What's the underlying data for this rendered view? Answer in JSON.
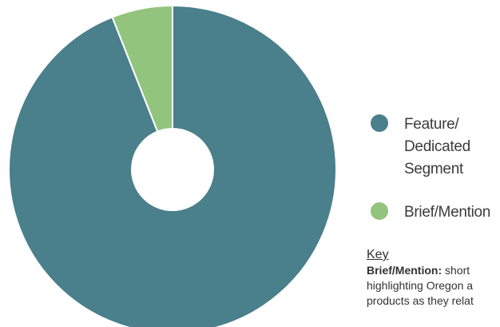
{
  "chart_data": {
    "type": "pie",
    "donut": true,
    "categories": [
      "Feature/ Dedicated Segment",
      "Brief/Mention"
    ],
    "values": [
      94,
      6
    ],
    "colors": [
      "#4a7f8c",
      "#93c47d"
    ],
    "slice_border_color": "#ffffff",
    "legend": {
      "placement": "right",
      "entries": [
        {
          "lines": [
            "Feature/",
            "Dedicated",
            "Segment"
          ],
          "color": "#4a7f8c"
        },
        {
          "lines": [
            "Brief/Mention"
          ],
          "color": "#93c47d"
        }
      ]
    }
  },
  "key": {
    "heading": "Key",
    "term": "Brief/Mention:",
    "first_line_rest": " short",
    "lines": [
      "highlighting Oregon a",
      "products as they relat"
    ]
  }
}
